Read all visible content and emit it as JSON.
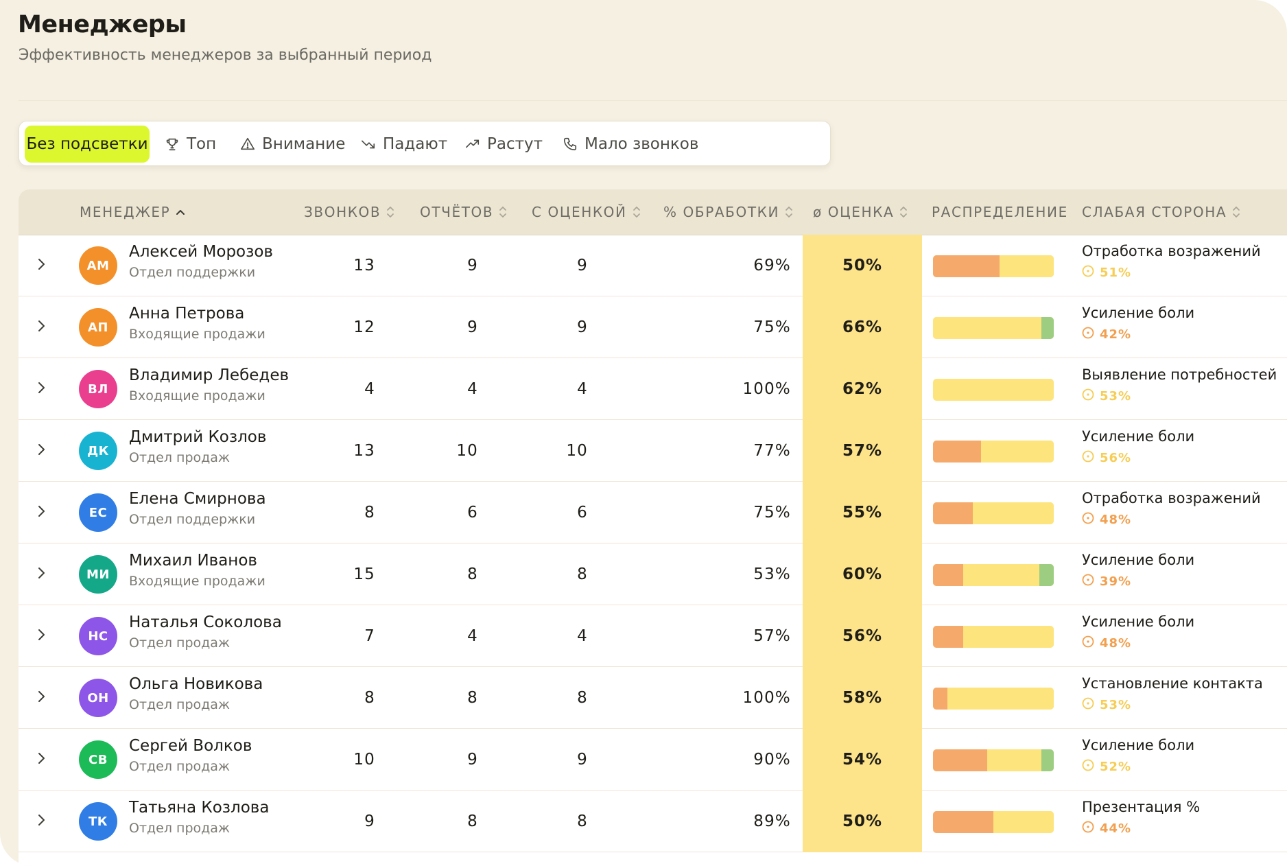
{
  "header": {
    "title": "Менеджеры",
    "subtitle": "Эффективность менеджеров за выбранный период"
  },
  "filters": [
    {
      "label": "Без подсветки",
      "icon": "none",
      "active": true
    },
    {
      "label": "Топ",
      "icon": "trophy-icon",
      "active": false
    },
    {
      "label": "Внимание",
      "icon": "warning-icon",
      "active": false
    },
    {
      "label": "Падают",
      "icon": "trend-down-icon",
      "active": false
    },
    {
      "label": "Растут",
      "icon": "trend-up-icon",
      "active": false
    },
    {
      "label": "Мало звонков",
      "icon": "phone-icon",
      "active": false
    }
  ],
  "table": {
    "columns": {
      "manager": "МЕНЕДЖЕР",
      "calls": "ЗВОНКОВ",
      "reports": "ОТЧЁТОВ",
      "rated": "С ОЦЕНКОЙ",
      "processing": "% ОБРАБОТКИ",
      "score": "ø ОЦЕНКА",
      "distribution": "РАСПРЕДЕЛЕНИЕ",
      "weakness": "СЛАБАЯ СТОРОНА"
    },
    "sorted_by": "manager",
    "sort_direction": "asc",
    "colors": {
      "score_highlight": "#fde48a",
      "dist_low": "#f5aa6b",
      "dist_mid": "#fde47d",
      "dist_high": "#9ccd80",
      "weak_orange": "#f2a04f",
      "weak_yellow": "#f6cd55"
    },
    "rows": [
      {
        "initials": "АМ",
        "name": "Алексей Морозов",
        "dept": "Отдел поддержки",
        "avatar_color": "#f39029",
        "calls": "13",
        "reports": "9",
        "rated": "9",
        "processing": "69%",
        "score": "50%",
        "dist": [
          0.55,
          0.45,
          0
        ],
        "weak": "Отработка возражений",
        "weak_pct": "51%",
        "weak_level": "yellow"
      },
      {
        "initials": "АП",
        "name": "Анна Петрова",
        "dept": "Входящие продажи",
        "avatar_color": "#f39029",
        "calls": "12",
        "reports": "9",
        "rated": "9",
        "processing": "75%",
        "score": "66%",
        "dist": [
          0,
          0.9,
          0.1
        ],
        "weak": "Усиление боли",
        "weak_pct": "42%",
        "weak_level": "orange"
      },
      {
        "initials": "ВЛ",
        "name": "Владимир Лебедев",
        "dept": "Входящие продажи",
        "avatar_color": "#ea3f8f",
        "calls": "4",
        "reports": "4",
        "rated": "4",
        "processing": "100%",
        "score": "62%",
        "dist": [
          0,
          1,
          0
        ],
        "weak": "Выявление потребностей",
        "weak_pct": "53%",
        "weak_level": "yellow"
      },
      {
        "initials": "ДК",
        "name": "Дмитрий Козлов",
        "dept": "Отдел продаж",
        "avatar_color": "#19b3d2",
        "calls": "13",
        "reports": "10",
        "rated": "10",
        "processing": "77%",
        "score": "57%",
        "dist": [
          0.4,
          0.6,
          0
        ],
        "weak": "Усиление боли",
        "weak_pct": "56%",
        "weak_level": "yellow"
      },
      {
        "initials": "ЕС",
        "name": "Елена Смирнова",
        "dept": "Отдел поддержки",
        "avatar_color": "#2f7de5",
        "calls": "8",
        "reports": "6",
        "rated": "6",
        "processing": "75%",
        "score": "55%",
        "dist": [
          0.33,
          0.67,
          0
        ],
        "weak": "Отработка возражений",
        "weak_pct": "48%",
        "weak_level": "orange"
      },
      {
        "initials": "МИ",
        "name": "Михаил Иванов",
        "dept": "Входящие продажи",
        "avatar_color": "#14a889",
        "calls": "15",
        "reports": "8",
        "rated": "8",
        "processing": "53%",
        "score": "60%",
        "dist": [
          0.25,
          0.63,
          0.12
        ],
        "weak": "Усиление боли",
        "weak_pct": "39%",
        "weak_level": "orange"
      },
      {
        "initials": "НС",
        "name": "Наталья Соколова",
        "dept": "Отдел продаж",
        "avatar_color": "#8d55e8",
        "calls": "7",
        "reports": "4",
        "rated": "4",
        "processing": "57%",
        "score": "56%",
        "dist": [
          0.25,
          0.75,
          0
        ],
        "weak": "Усиление боли",
        "weak_pct": "48%",
        "weak_level": "orange"
      },
      {
        "initials": "ОН",
        "name": "Ольга Новикова",
        "dept": "Отдел продаж",
        "avatar_color": "#8d55e8",
        "calls": "8",
        "reports": "8",
        "rated": "8",
        "processing": "100%",
        "score": "58%",
        "dist": [
          0.12,
          0.88,
          0
        ],
        "weak": "Установление контакта",
        "weak_pct": "53%",
        "weak_level": "yellow"
      },
      {
        "initials": "СВ",
        "name": "Сергей Волков",
        "dept": "Отдел продаж",
        "avatar_color": "#1cbb57",
        "calls": "10",
        "reports": "9",
        "rated": "9",
        "processing": "90%",
        "score": "54%",
        "dist": [
          0.45,
          0.45,
          0.1
        ],
        "weak": "Усиление боли",
        "weak_pct": "52%",
        "weak_level": "yellow"
      },
      {
        "initials": "ТК",
        "name": "Татьяна Козлова",
        "dept": "Отдел продаж",
        "avatar_color": "#2f7de5",
        "calls": "9",
        "reports": "8",
        "rated": "8",
        "processing": "89%",
        "score": "50%",
        "dist": [
          0.5,
          0.5,
          0
        ],
        "weak": "Презентация %",
        "weak_pct": "44%",
        "weak_level": "orange"
      }
    ]
  }
}
